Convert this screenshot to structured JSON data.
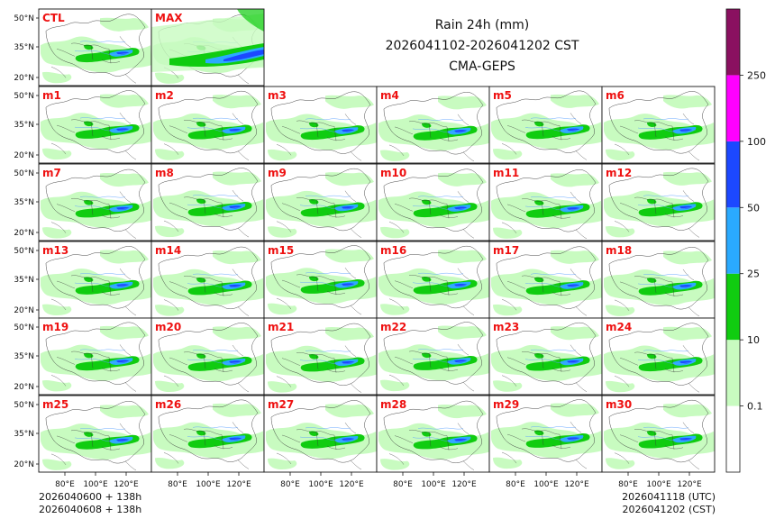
{
  "title": {
    "line1": "Rain 24h (mm)",
    "line2": "2026041102-2026041202 CST",
    "line3": "CMA-GEPS"
  },
  "panels": {
    "top_row": [
      "CTL",
      "MAX"
    ],
    "members": [
      "m1",
      "m2",
      "m3",
      "m4",
      "m5",
      "m6",
      "m7",
      "m8",
      "m9",
      "m10",
      "m11",
      "m12",
      "m13",
      "m14",
      "m15",
      "m16",
      "m17",
      "m18",
      "m19",
      "m20",
      "m21",
      "m22",
      "m23",
      "m24",
      "m25",
      "m26",
      "m27",
      "m28",
      "m29",
      "m30"
    ]
  },
  "axes": {
    "lat_ticks": [
      "50°N",
      "35°N",
      "20°N"
    ],
    "lon_ticks": [
      "80°E",
      "100°E",
      "120°E"
    ]
  },
  "colorbar": {
    "levels": [
      "0.1",
      "10",
      "25",
      "50",
      "100",
      "250"
    ],
    "colors": [
      "#ffffff",
      "#c8fbc0",
      "#10cc10",
      "#2aaaff",
      "#1c48ff",
      "#ff00ff",
      "#8a1060"
    ]
  },
  "footer": {
    "left_line1": "2026040600 + 138h",
    "left_line2": "2026040608 + 138h",
    "right_line1": "2026041118 (UTC)",
    "right_line2": "2026041202 (CST)"
  },
  "style": {
    "label_color": "#ee1111",
    "land_light": "#c8fbc0",
    "land_mid": "#10cc10",
    "border_color": "#333333",
    "river_color": "#5aa0ff"
  }
}
